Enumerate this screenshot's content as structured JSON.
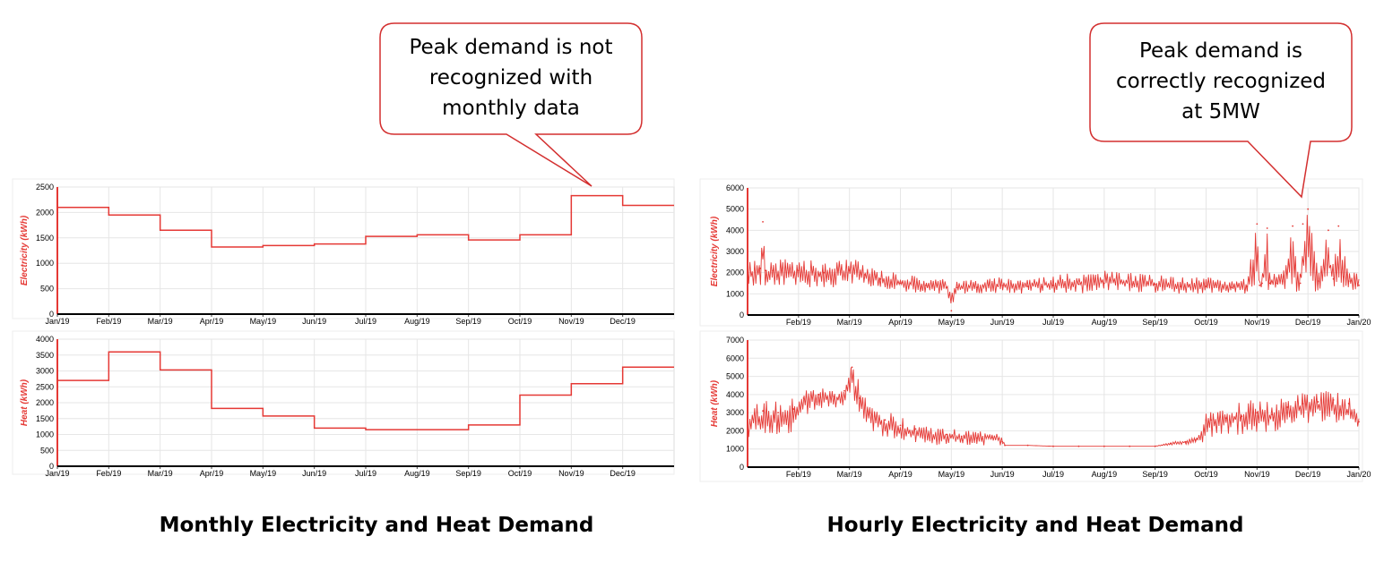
{
  "captions": {
    "monthly": "Monthly Electricity and Heat Demand",
    "hourly": "Hourly Electricity and Heat Demand"
  },
  "callouts": {
    "monthly": [
      "Peak demand is not",
      "recognized with",
      "monthly data"
    ],
    "hourly": [
      "Peak demand is",
      "correctly recognized",
      "at 5MW"
    ]
  },
  "colors": {
    "series": "#e53935",
    "callout_border": "#d32f2f",
    "grid": "#e6e6e6"
  },
  "chart_data": [
    {
      "id": "monthly-electricity",
      "type": "line",
      "step": true,
      "ylabel": "Electricity (kWh)",
      "ylim": [
        0,
        2500
      ],
      "yticks": [
        0,
        500,
        1000,
        1500,
        2000,
        2500
      ],
      "xlim": [
        0,
        12
      ],
      "xticks": [
        {
          "x": 0,
          "label": "Jan/19"
        },
        {
          "x": 1,
          "label": "Feb/19"
        },
        {
          "x": 2,
          "label": "Mar/19"
        },
        {
          "x": 3,
          "label": "Apr/19"
        },
        {
          "x": 4,
          "label": "May/19"
        },
        {
          "x": 5,
          "label": "Jun/19"
        },
        {
          "x": 6,
          "label": "Jul/19"
        },
        {
          "x": 7,
          "label": "Aug/19"
        },
        {
          "x": 8,
          "label": "Sep/19"
        },
        {
          "x": 9,
          "label": "Oct/19"
        },
        {
          "x": 10,
          "label": "Nov/19"
        },
        {
          "x": 11,
          "label": "Dec/19"
        }
      ],
      "grid": true,
      "series": [
        {
          "values": [
            2100,
            1950,
            1650,
            1320,
            1350,
            1380,
            1530,
            1560,
            1460,
            1560,
            2330,
            2140
          ]
        }
      ]
    },
    {
      "id": "monthly-heat",
      "type": "line",
      "step": true,
      "ylabel": "Heat (kWh)",
      "ylim": [
        0,
        4000
      ],
      "yticks": [
        0,
        500,
        1000,
        1500,
        2000,
        2500,
        3000,
        3500,
        4000
      ],
      "xlim": [
        0,
        12
      ],
      "xticks": [
        {
          "x": 0,
          "label": "Jan/19"
        },
        {
          "x": 1,
          "label": "Feb/19"
        },
        {
          "x": 2,
          "label": "Mar/19"
        },
        {
          "x": 3,
          "label": "Apr/19"
        },
        {
          "x": 4,
          "label": "May/19"
        },
        {
          "x": 5,
          "label": "Jun/19"
        },
        {
          "x": 6,
          "label": "Jul/19"
        },
        {
          "x": 7,
          "label": "Aug/19"
        },
        {
          "x": 8,
          "label": "Sep/19"
        },
        {
          "x": 9,
          "label": "Oct/19"
        },
        {
          "x": 10,
          "label": "Nov/19"
        },
        {
          "x": 11,
          "label": "Dec/19"
        }
      ],
      "grid": true,
      "series": [
        {
          "values": [
            2700,
            3600,
            3030,
            1820,
            1580,
            1200,
            1150,
            1150,
            1300,
            2240,
            2600,
            3120
          ]
        }
      ]
    },
    {
      "id": "hourly-electricity",
      "type": "line",
      "ylabel": "Electricity (kWh)",
      "ylim": [
        0,
        6000
      ],
      "yticks": [
        0,
        1000,
        2000,
        3000,
        4000,
        5000,
        6000
      ],
      "xlim": [
        0,
        12
      ],
      "xticks": [
        {
          "x": 1,
          "label": "Feb/19"
        },
        {
          "x": 2,
          "label": "Mar/19"
        },
        {
          "x": 3,
          "label": "Apr/19"
        },
        {
          "x": 4,
          "label": "May/19"
        },
        {
          "x": 5,
          "label": "Jun/19"
        },
        {
          "x": 6,
          "label": "Jul/19"
        },
        {
          "x": 7,
          "label": "Aug/19"
        },
        {
          "x": 8,
          "label": "Sep/19"
        },
        {
          "x": 9,
          "label": "Oct/19"
        },
        {
          "x": 10,
          "label": "Nov/19"
        },
        {
          "x": 11,
          "label": "Dec/19"
        },
        {
          "x": 12,
          "label": "Jan/20"
        }
      ],
      "grid": true,
      "series": [
        {
          "x": [
            0,
            0.25,
            0.3,
            0.35,
            0.5,
            1,
            1.5,
            2,
            2.3,
            2.6,
            3,
            3.5,
            3.9,
            4,
            4.1,
            4.5,
            5,
            5.5,
            6,
            6.5,
            7,
            7.5,
            8,
            8.5,
            9,
            9.5,
            9.8,
            10,
            10.05,
            10.1,
            10.2,
            10.25,
            10.4,
            10.5,
            10.7,
            10.85,
            10.9,
            11,
            11.2,
            11.4,
            11.5,
            11.6,
            11.7,
            11.8,
            12
          ],
          "y": [
            2000,
            2200,
            4400,
            2100,
            2100,
            2100,
            2000,
            2100,
            1900,
            1700,
            1500,
            1400,
            1300,
            200,
            1300,
            1300,
            1400,
            1350,
            1400,
            1450,
            1500,
            1450,
            1450,
            1350,
            1350,
            1300,
            1350,
            4300,
            1400,
            1500,
            4100,
            1500,
            1500,
            1600,
            4200,
            1500,
            4300,
            5000,
            1600,
            4000,
            1700,
            4200,
            1800,
            1600,
            1400
          ],
          "lo": [
            1300,
            1300,
            1300,
            1300,
            1300,
            1300,
            1300,
            1300,
            1300,
            1200,
            1100,
            1000,
            1000,
            200,
            1000,
            1000,
            1000,
            1000,
            1000,
            1000,
            1100,
            1100,
            1000,
            1000,
            1000,
            1000,
            1000,
            1200,
            1000,
            1000,
            1200,
            1000,
            1000,
            1000,
            1200,
            1000,
            1200,
            1400,
            1000,
            1200,
            1000,
            1200,
            1000,
            1000,
            1000
          ],
          "hi": [
            2600,
            2700,
            4400,
            2600,
            2600,
            2700,
            2500,
            2800,
            2400,
            2200,
            2000,
            1800,
            1700,
            1500,
            1700,
            1700,
            1800,
            1800,
            1900,
            2000,
            2100,
            2000,
            1900,
            1800,
            1800,
            1700,
            1700,
            4300,
            1900,
            2000,
            4100,
            2000,
            2000,
            2200,
            4200,
            2100,
            4300,
            5000,
            2200,
            4000,
            2300,
            4200,
            3300,
            2100,
            2000
          ]
        }
      ]
    },
    {
      "id": "hourly-heat",
      "type": "line",
      "ylabel": "Heat (kWh)",
      "ylim": [
        0,
        7000
      ],
      "yticks": [
        0,
        1000,
        2000,
        3000,
        4000,
        5000,
        6000,
        7000
      ],
      "xlim": [
        0,
        12
      ],
      "xticks": [
        {
          "x": 1,
          "label": "Feb/19"
        },
        {
          "x": 2,
          "label": "Mar/19"
        },
        {
          "x": 3,
          "label": "Apr/19"
        },
        {
          "x": 4,
          "label": "May/19"
        },
        {
          "x": 5,
          "label": "Jun/19"
        },
        {
          "x": 6,
          "label": "Jul/19"
        },
        {
          "x": 7,
          "label": "Aug/19"
        },
        {
          "x": 8,
          "label": "Sep/19"
        },
        {
          "x": 9,
          "label": "Oct/19"
        },
        {
          "x": 10,
          "label": "Nov/19"
        },
        {
          "x": 11,
          "label": "Dec/19"
        },
        {
          "x": 12,
          "label": "Jan/20"
        }
      ],
      "grid": true,
      "series": [
        {
          "x": [
            0,
            0.3,
            0.6,
            0.9,
            1.1,
            1.4,
            1.7,
            1.9,
            2.05,
            2.2,
            2.4,
            2.7,
            3,
            3.3,
            3.6,
            3.9,
            4.2,
            4.5,
            4.8,
            5,
            5.05,
            5.5,
            6,
            6.5,
            7,
            7.5,
            8,
            8.3,
            8.6,
            8.8,
            9,
            9.1,
            9.4,
            9.7,
            10,
            10.3,
            10.6,
            10.9,
            11.2,
            11.5,
            11.8,
            12
          ],
          "y": [
            2700,
            3100,
            3000,
            3200,
            3800,
            4000,
            3900,
            4200,
            5500,
            3800,
            3000,
            2600,
            2300,
            2100,
            1900,
            1800,
            1700,
            1600,
            1650,
            1400,
            1200,
            1200,
            1150,
            1150,
            1150,
            1150,
            1150,
            1300,
            1400,
            1500,
            2600,
            2600,
            2700,
            2800,
            3000,
            2900,
            3300,
            3500,
            3600,
            3700,
            3500,
            2500
          ],
          "lo": [
            1500,
            1800,
            1700,
            1900,
            2800,
            3300,
            3100,
            3300,
            3800,
            2500,
            2000,
            1600,
            1400,
            1300,
            1200,
            1200,
            1200,
            1200,
            1200,
            1100,
            1200,
            1200,
            1150,
            1150,
            1150,
            1150,
            1150,
            1200,
            1250,
            1300,
            1400,
            1600,
            1700,
            1800,
            1900,
            1900,
            2200,
            2400,
            2500,
            2500,
            2300,
            2100
          ],
          "hi": [
            3300,
            3700,
            3600,
            3800,
            4300,
            4400,
            4300,
            4500,
            5800,
            4800,
            3400,
            3100,
            2800,
            2500,
            2300,
            2100,
            2100,
            2000,
            2100,
            1900,
            1200,
            1200,
            1150,
            1150,
            1150,
            1150,
            1150,
            1400,
            1500,
            1650,
            3100,
            3300,
            3500,
            3800,
            3700,
            3600,
            3900,
            4100,
            4200,
            4200,
            3900,
            3100
          ]
        }
      ]
    }
  ]
}
